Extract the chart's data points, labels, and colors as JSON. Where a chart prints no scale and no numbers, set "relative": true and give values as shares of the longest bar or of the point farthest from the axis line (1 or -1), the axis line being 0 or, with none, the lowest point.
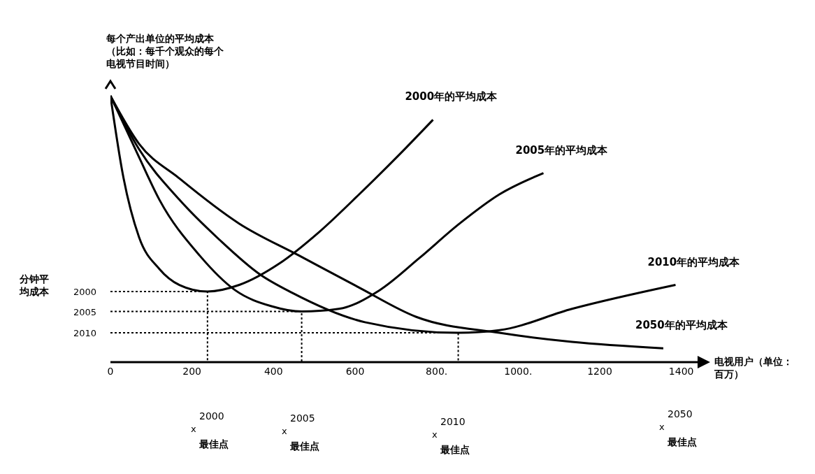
{
  "chart_data": {
    "type": "line",
    "relative": true,
    "xlabel": "电视用户（单位：百万）",
    "ylabel": "每个产出单位的平均成本（比如：每千个观众的每个电视节目时间）",
    "xlim": [
      0,
      1440
    ],
    "xticks": [
      0,
      200,
      400,
      600,
      {
        "value": 800,
        "label": "800."
      },
      {
        "value": 1000,
        "label": "1000."
      },
      1200,
      1400
    ],
    "grid": false,
    "legend": false,
    "marker": "none",
    "line_style": "solid",
    "series": [
      {
        "name": "2000年的平均成本",
        "color": "#000000",
        "x": [
          0,
          31,
          70,
          120,
          169,
          238,
          316,
          414,
          513,
          610,
          709,
          791
        ],
        "values": [
          1,
          0.7,
          0.47,
          0.35,
          0.29,
          0.265,
          0.29,
          0.37,
          0.49,
          0.63,
          0.78,
          0.91
        ]
      },
      {
        "name": "2005年的平均成本",
        "color": "#000000",
        "x": [
          0,
          70,
          120,
          219,
          306,
          395,
          469,
          560,
          660,
          757,
          856,
          954,
          1062
        ],
        "values": [
          1,
          0.77,
          0.61,
          0.4,
          0.27,
          0.21,
          0.19,
          0.2,
          0.27,
          0.39,
          0.52,
          0.63,
          0.71
        ]
      },
      {
        "name": "2010年的平均成本",
        "color": "#000000",
        "x": [
          0,
          70,
          169,
          267,
          366,
          446,
          624,
          853,
          954,
          1132,
          1386
        ],
        "values": [
          1,
          0.8,
          0.61,
          0.46,
          0.33,
          0.26,
          0.15,
          0.11,
          0.12,
          0.2,
          0.29
        ]
      },
      {
        "name": "2050年的平均成本",
        "color": "#000000",
        "x": [
          0,
          70,
          169,
          316,
          463,
          610,
          750,
          954,
          1132,
          1356
        ],
        "values": [
          1,
          0.82,
          0.69,
          0.52,
          0.4,
          0.28,
          0.17,
          0.11,
          0.076,
          0.052
        ]
      },
      {
        "color": "#000000",
        "line_style": "dotted",
        "x": [
          0,
          238,
          238
        ],
        "values": [
          0.265,
          0.265,
          0
        ]
      },
      {
        "color": "#000000",
        "line_style": "dotted",
        "x": [
          0,
          469,
          469
        ],
        "values": [
          0.19,
          0.19,
          0
        ]
      },
      {
        "color": "#000000",
        "line_style": "dotted",
        "x": [
          0,
          853,
          853
        ],
        "values": [
          0.11,
          0.11,
          0
        ]
      }
    ],
    "annotations": [
      "分钟平均成本",
      "2000",
      "2005",
      "2010",
      "x",
      "2000",
      "最佳点",
      "x",
      "2005",
      "最佳点",
      "x",
      "2010",
      "最佳点",
      "x",
      "2050",
      "最佳点"
    ]
  }
}
